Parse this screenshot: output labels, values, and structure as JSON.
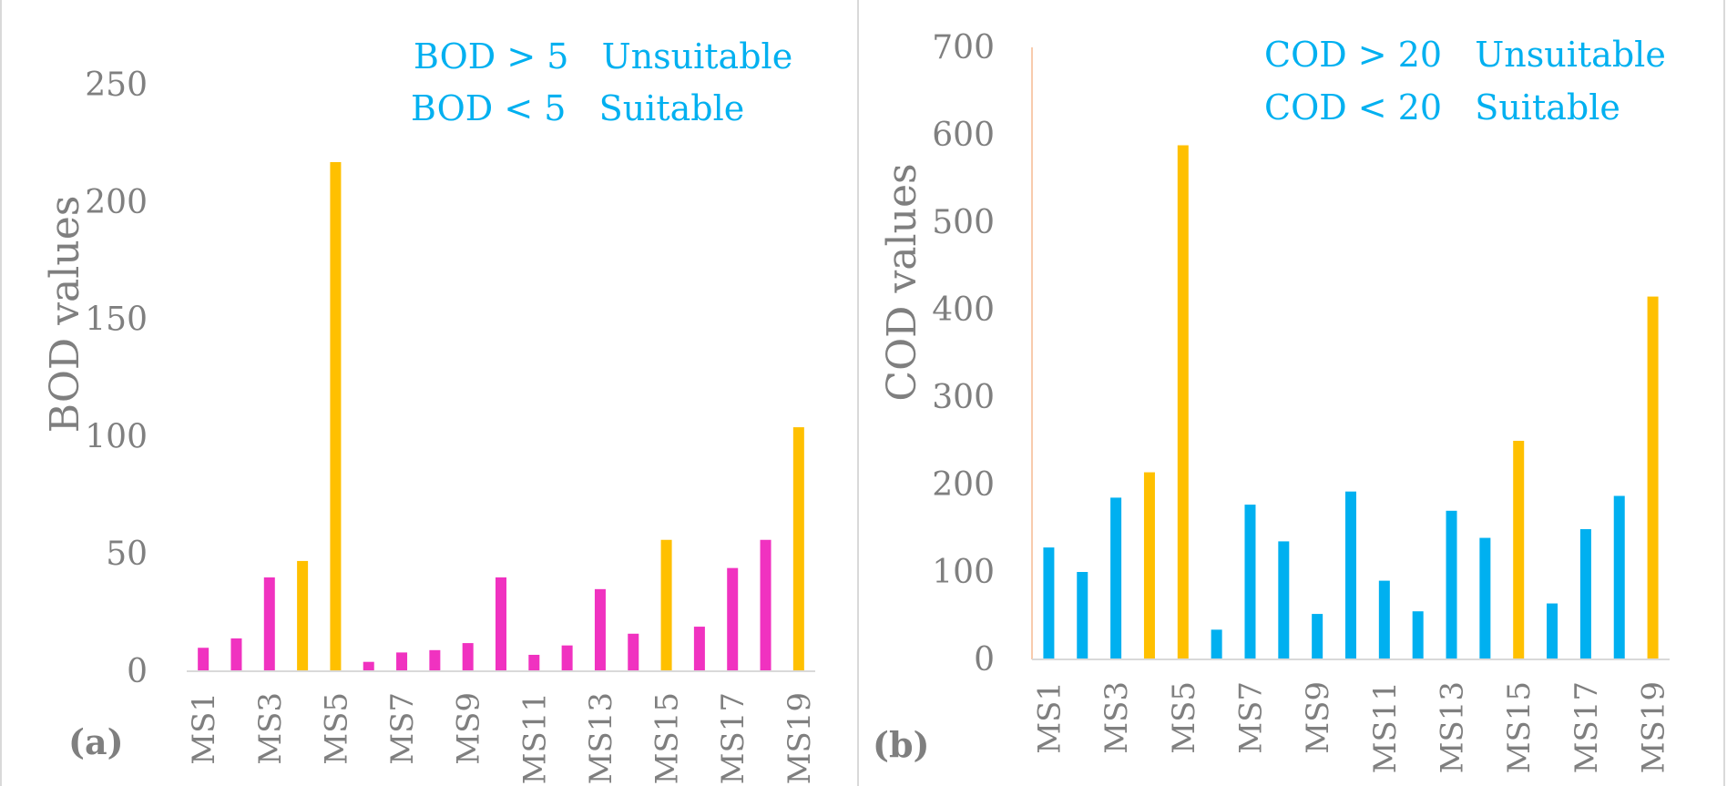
{
  "chart_data": [
    {
      "type": "bar",
      "panel_label": "(a)",
      "title": "",
      "xlabel": "",
      "ylabel": "BOD values",
      "ylim": [
        0,
        250
      ],
      "yticks": [
        0,
        50,
        100,
        150,
        200,
        250
      ],
      "grid": false,
      "annotations": [
        "BOD > 5   Unsuitable",
        "BOD < 5   Suitable"
      ],
      "categories": [
        "MS1",
        "MS2",
        "MS3",
        "MS4",
        "MS5",
        "MS6",
        "MS7",
        "MS8",
        "MS9",
        "MS10",
        "MS11",
        "MS12",
        "MS13",
        "MS14",
        "MS15",
        "MS16",
        "MS17",
        "MS18",
        "MS19"
      ],
      "tick_labels": [
        "MS1",
        "MS3",
        "MS5",
        "MS7",
        "MS9",
        "MS11",
        "MS13",
        "MS15",
        "MS17",
        "MS19"
      ],
      "values": [
        10,
        14,
        40,
        47,
        217,
        4,
        8,
        9,
        12,
        40,
        7,
        11,
        35,
        16,
        56,
        19,
        44,
        56,
        104
      ],
      "bar_colors": [
        "#f032c0",
        "#f032c0",
        "#f032c0",
        "#ffc000",
        "#ffc000",
        "#f032c0",
        "#f032c0",
        "#f032c0",
        "#f032c0",
        "#f032c0",
        "#f032c0",
        "#f032c0",
        "#f032c0",
        "#f032c0",
        "#ffc000",
        "#f032c0",
        "#f032c0",
        "#f032c0",
        "#ffc000"
      ]
    },
    {
      "type": "bar",
      "panel_label": "(b)",
      "title": "",
      "xlabel": "",
      "ylabel": "COD values",
      "ylim": [
        0,
        700
      ],
      "yticks": [
        0,
        100,
        200,
        300,
        400,
        500,
        600,
        700
      ],
      "grid": false,
      "annotations": [
        "COD > 20   Unsuitable",
        "COD < 20   Suitable"
      ],
      "categories": [
        "MS1",
        "MS2",
        "MS3",
        "MS4",
        "MS5",
        "MS6",
        "MS7",
        "MS8",
        "MS9",
        "MS10",
        "MS11",
        "MS12",
        "MS13",
        "MS14",
        "MS15",
        "MS16",
        "MS17",
        "MS18",
        "MS19"
      ],
      "tick_labels": [
        "MS1",
        "MS3",
        "MS5",
        "MS7",
        "MS9",
        "MS11",
        "MS13",
        "MS15",
        "MS17",
        "MS19"
      ],
      "values": [
        128,
        100,
        185,
        214,
        588,
        34,
        177,
        135,
        52,
        192,
        90,
        55,
        170,
        139,
        250,
        64,
        149,
        187,
        415
      ],
      "bar_colors": [
        "#00b0f0",
        "#00b0f0",
        "#00b0f0",
        "#ffc000",
        "#ffc000",
        "#00b0f0",
        "#00b0f0",
        "#00b0f0",
        "#00b0f0",
        "#00b0f0",
        "#00b0f0",
        "#00b0f0",
        "#00b0f0",
        "#00b0f0",
        "#ffc000",
        "#00b0f0",
        "#00b0f0",
        "#00b0f0",
        "#ffc000"
      ]
    }
  ],
  "colors": {
    "unsuitable_bar": "#ffc000",
    "bod_bar": "#f032c0",
    "cod_bar": "#00b0f0",
    "legend_text": "#00b0f0",
    "text_gray": "#7f7f7f"
  }
}
